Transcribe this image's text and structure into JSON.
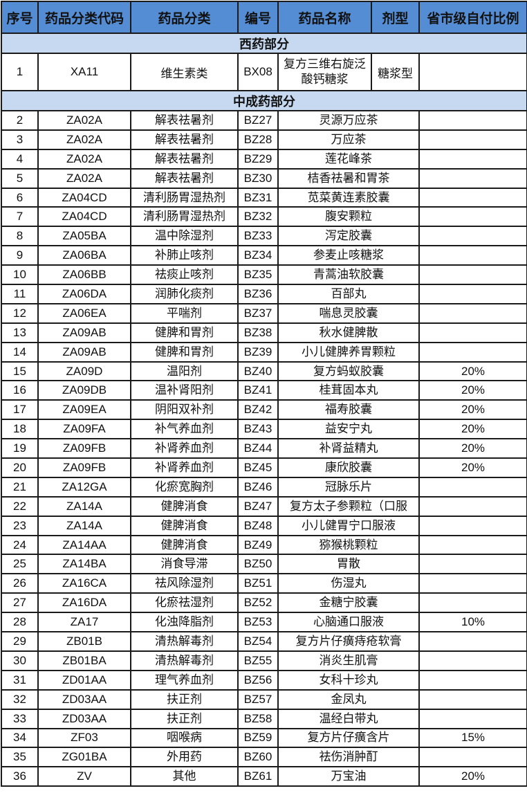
{
  "headers": [
    "序号",
    "药品分类代码",
    "药品分类",
    "编号",
    "药品名称",
    "剂型",
    "省市级自付比例"
  ],
  "colors": {
    "header_bg": "#548dd4",
    "section_bg": "#c6d9f1"
  },
  "western_section": "西药部分",
  "western_rows": [
    {
      "no": "1",
      "code": "XA11",
      "category": "维生素类",
      "id": "BX08",
      "name": "复方三维右旋泛酸钙糖浆",
      "form": "糖浆型",
      "ratio": ""
    }
  ],
  "tcm_section": "中成药部分",
  "tcm_rows": [
    {
      "no": "2",
      "code": "ZA02A",
      "category": "解表祛暑剂",
      "id": "BZ27",
      "name": "灵源万应茶",
      "ratio": ""
    },
    {
      "no": "3",
      "code": "ZA02A",
      "category": "解表祛暑剂",
      "id": "BZ28",
      "name": "万应茶",
      "ratio": ""
    },
    {
      "no": "4",
      "code": "ZA02A",
      "category": "解表祛暑剂",
      "id": "BZ29",
      "name": "莲花峰茶",
      "ratio": ""
    },
    {
      "no": "5",
      "code": "ZA02A",
      "category": "解表祛暑剂",
      "id": "BZ30",
      "name": "桔香祛暑和胃茶",
      "ratio": ""
    },
    {
      "no": "6",
      "code": "ZA04CD",
      "category": "清利肠胃湿热剂",
      "id": "BZ31",
      "name": "苋菜黄连素胶囊",
      "ratio": ""
    },
    {
      "no": "7",
      "code": "ZA04CD",
      "category": "清利肠胃湿热剂",
      "id": "BZ32",
      "name": "腹安颗粒",
      "ratio": ""
    },
    {
      "no": "8",
      "code": "ZA05BA",
      "category": "温中除湿剂",
      "id": "BZ33",
      "name": "泻定胶囊",
      "ratio": ""
    },
    {
      "no": "9",
      "code": "ZA06BA",
      "category": "补肺止咳剂",
      "id": "BZ34",
      "name": "参麦止咳糖浆",
      "ratio": ""
    },
    {
      "no": "10",
      "code": "ZA06BB",
      "category": "祛痰止咳剂",
      "id": "BZ35",
      "name": "青蒿油软胶囊",
      "ratio": ""
    },
    {
      "no": "11",
      "code": "ZA06DA",
      "category": "润肺化痰剂",
      "id": "BZ36",
      "name": "百部丸",
      "ratio": ""
    },
    {
      "no": "12",
      "code": "ZA06EA",
      "category": "平喘剂",
      "id": "BZ37",
      "name": "喘息灵胶囊",
      "ratio": ""
    },
    {
      "no": "13",
      "code": "ZA09AB",
      "category": "健脾和胃剂",
      "id": "BZ38",
      "name": "秋水健脾散",
      "ratio": ""
    },
    {
      "no": "14",
      "code": "ZA09AB",
      "category": "健脾和胃剂",
      "id": "BZ39",
      "name": "小儿健脾养胃颗粒",
      "ratio": ""
    },
    {
      "no": "15",
      "code": "ZA09D",
      "category": "温阳剂",
      "id": "BZ40",
      "name": "复方蚂蚁胶囊",
      "ratio": "20%"
    },
    {
      "no": "16",
      "code": "ZA09DB",
      "category": "温补肾阳剂",
      "id": "BZ41",
      "name": "桂茸固本丸",
      "ratio": "20%"
    },
    {
      "no": "17",
      "code": "ZA09EA",
      "category": "阴阳双补剂",
      "id": "BZ42",
      "name": "福寿胶囊",
      "ratio": "20%"
    },
    {
      "no": "18",
      "code": "ZA09FA",
      "category": "补气养血剂",
      "id": "BZ43",
      "name": "益安宁丸",
      "ratio": "20%"
    },
    {
      "no": "19",
      "code": "ZA09FB",
      "category": "补肾养血剂",
      "id": "BZ44",
      "name": "补肾益精丸",
      "ratio": "20%"
    },
    {
      "no": "20",
      "code": "ZA09FB",
      "category": "补肾养血剂",
      "id": "BZ45",
      "name": "康欣胶囊",
      "ratio": "20%"
    },
    {
      "no": "21",
      "code": "ZA12GA",
      "category": "化瘀宽胸剂",
      "id": "BZ46",
      "name": "冠脉乐片",
      "ratio": ""
    },
    {
      "no": "22",
      "code": "ZA14A",
      "category": "健脾消食",
      "id": "BZ47",
      "name": "复方太子参颗粒（口服",
      "ratio": ""
    },
    {
      "no": "23",
      "code": "ZA14A",
      "category": "健脾消食",
      "id": "BZ48",
      "name": "小儿健胃宁口服液",
      "ratio": ""
    },
    {
      "no": "24",
      "code": "ZA14AA",
      "category": "健脾消食",
      "id": "BZ49",
      "name": "猕猴桃颗粒",
      "ratio": ""
    },
    {
      "no": "25",
      "code": "ZA14BA",
      "category": "消食导滞",
      "id": "BZ50",
      "name": "胃散",
      "ratio": ""
    },
    {
      "no": "26",
      "code": "ZA16CA",
      "category": "祛风除湿剂",
      "id": "BZ51",
      "name": "伤湿丸",
      "ratio": ""
    },
    {
      "no": "27",
      "code": "ZA16DA",
      "category": "化瘀祛湿剂",
      "id": "BZ52",
      "name": "金糖宁胶囊",
      "ratio": ""
    },
    {
      "no": "28",
      "code": "ZA17",
      "category": "化浊降脂剂",
      "id": "BZ53",
      "name": "心脑通口服液",
      "ratio": "10%"
    },
    {
      "no": "29",
      "code": "ZB01B",
      "category": "清热解毒剂",
      "id": "BZ54",
      "name": "复方片仔癀痔疮软膏",
      "ratio": ""
    },
    {
      "no": "30",
      "code": "ZB01BA",
      "category": "清热解毒剂",
      "id": "BZ55",
      "name": "消炎生肌膏",
      "ratio": ""
    },
    {
      "no": "31",
      "code": "ZD01AA",
      "category": "理气养血剂",
      "id": "BZ56",
      "name": "女科十珍丸",
      "ratio": ""
    },
    {
      "no": "32",
      "code": "ZD03AA",
      "category": "扶正剂",
      "id": "BZ57",
      "name": "金凤丸",
      "ratio": ""
    },
    {
      "no": "33",
      "code": "ZD03AA",
      "category": "扶正剂",
      "id": "BZ58",
      "name": "温经白带丸",
      "ratio": ""
    },
    {
      "no": "34",
      "code": "ZF03",
      "category": "咽喉病",
      "id": "BZ59",
      "name": "复方片仔癀含片",
      "ratio": "15%"
    },
    {
      "no": "35",
      "code": "ZG01BA",
      "category": "外用药",
      "id": "BZ60",
      "name": "祛伤消肿酊",
      "ratio": ""
    },
    {
      "no": "36",
      "code": "ZV",
      "category": "其他",
      "id": "BZ61",
      "name": "万宝油",
      "ratio": "20%"
    }
  ]
}
